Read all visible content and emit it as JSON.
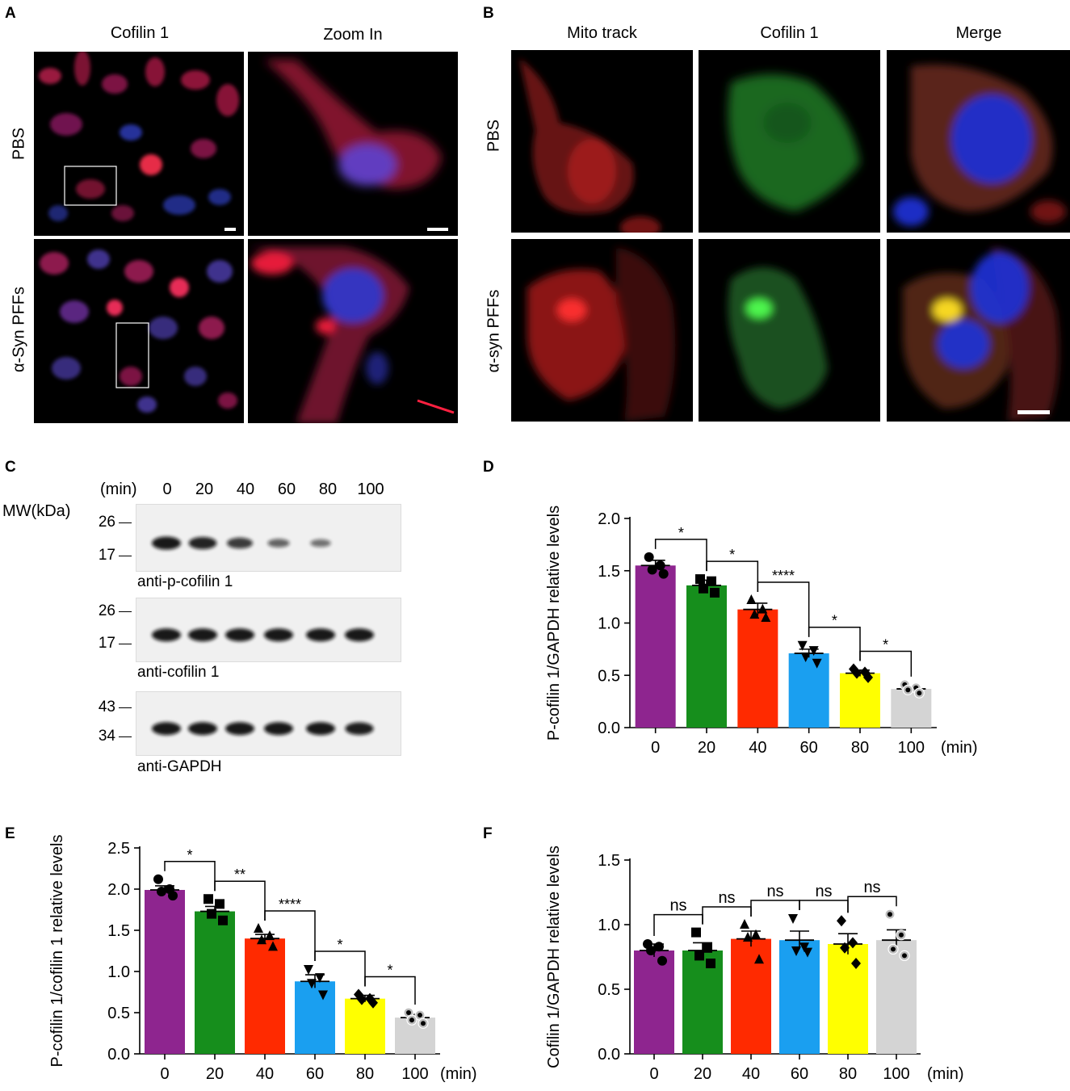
{
  "panels": {
    "A": {
      "letter": "A",
      "col_titles": [
        "Cofilin 1",
        "Zoom In"
      ],
      "row_labels": [
        "PBS",
        "α-Syn PFFs"
      ]
    },
    "B": {
      "letter": "B",
      "col_titles": [
        "Mito track",
        "Cofilin 1",
        "Merge"
      ],
      "row_labels": [
        "PBS",
        "α-syn PFFs"
      ]
    },
    "C": {
      "letter": "C",
      "time_header": "(min)",
      "lanes": [
        "0",
        "20",
        "40",
        "60",
        "80",
        "100"
      ],
      "mw_label": "MW(kDa)",
      "blots": [
        {
          "name": "anti-p-cofilin 1",
          "mw_top": "26",
          "mw_bottom": "17",
          "intensity": [
            1.0,
            0.92,
            0.75,
            0.45,
            0.35,
            0.0
          ]
        },
        {
          "name": "anti-cofilin 1",
          "mw_top": "26",
          "mw_bottom": "17",
          "intensity": [
            1.0,
            1.0,
            1.0,
            1.0,
            1.0,
            1.0
          ]
        },
        {
          "name": "anti-GAPDH",
          "mw_top": "43",
          "mw_bottom": "34",
          "intensity": [
            1.0,
            1.0,
            1.0,
            1.0,
            1.0,
            0.95
          ]
        }
      ]
    },
    "D": {
      "letter": "D"
    },
    "E": {
      "letter": "E"
    },
    "F": {
      "letter": "F"
    }
  },
  "colors": {
    "bars": [
      "#8e258f",
      "#168e1c",
      "#ff2a00",
      "#1a9ff0",
      "#ffff00",
      "#d4d4d4"
    ],
    "red_stain": "#e0203a",
    "green_stain": "#33b23a",
    "blue_stain": "#2a3ad8"
  },
  "chart_data": [
    {
      "id": "D",
      "type": "bar",
      "categories": [
        "0",
        "20",
        "40",
        "60",
        "80",
        "100"
      ],
      "x_unit": "(min)",
      "values": [
        1.55,
        1.36,
        1.13,
        0.71,
        0.52,
        0.37
      ],
      "errors": [
        0.05,
        0.05,
        0.06,
        0.04,
        0.03,
        0.02
      ],
      "points": [
        [
          1.63,
          1.55,
          1.51,
          1.47
        ],
        [
          1.42,
          1.4,
          1.33,
          1.29
        ],
        [
          1.22,
          1.13,
          1.08,
          1.05
        ],
        [
          0.79,
          0.74,
          0.68,
          0.62
        ],
        [
          0.56,
          0.53,
          0.52,
          0.48
        ],
        [
          0.41,
          0.38,
          0.36,
          0.33
        ]
      ],
      "markers": [
        "circle",
        "square",
        "triangle",
        "triangle-down",
        "diamond",
        "hollow-circle"
      ],
      "ylabel": "P-cofilin 1/GAPDH relative levels",
      "ylim": [
        0,
        2.0
      ],
      "yticks": [
        "0.0",
        "0.5",
        "1.0",
        "1.5",
        "2.0"
      ],
      "significance": [
        {
          "from": 0,
          "to": 1,
          "label": "*"
        },
        {
          "from": 1,
          "to": 2,
          "label": "*"
        },
        {
          "from": 2,
          "to": 3,
          "label": "****"
        },
        {
          "from": 3,
          "to": 4,
          "label": "*"
        },
        {
          "from": 4,
          "to": 5,
          "label": "*"
        }
      ]
    },
    {
      "id": "E",
      "type": "bar",
      "categories": [
        "0",
        "20",
        "40",
        "60",
        "80",
        "100"
      ],
      "x_unit": "(min)",
      "values": [
        1.99,
        1.73,
        1.4,
        0.88,
        0.67,
        0.44
      ],
      "errors": [
        0.05,
        0.06,
        0.05,
        0.08,
        0.04,
        0.04
      ],
      "points": [
        [
          2.12,
          2.0,
          1.97,
          1.92
        ],
        [
          1.88,
          1.82,
          1.7,
          1.62
        ],
        [
          1.52,
          1.43,
          1.38,
          1.3
        ],
        [
          1.03,
          0.93,
          0.86,
          0.72
        ],
        [
          0.72,
          0.67,
          0.66,
          0.62
        ],
        [
          0.5,
          0.47,
          0.41,
          0.37
        ]
      ],
      "markers": [
        "circle",
        "square",
        "triangle",
        "triangle-down",
        "diamond",
        "hollow-circle"
      ],
      "ylabel": "P-cofilin 1/cofilin 1 relative levels",
      "ylim": [
        0,
        2.5
      ],
      "yticks": [
        "0.0",
        "0.5",
        "1.0",
        "1.5",
        "2.0",
        "2.5"
      ],
      "significance": [
        {
          "from": 0,
          "to": 1,
          "label": "*"
        },
        {
          "from": 1,
          "to": 2,
          "label": "**"
        },
        {
          "from": 2,
          "to": 3,
          "label": "****"
        },
        {
          "from": 3,
          "to": 4,
          "label": "*"
        },
        {
          "from": 4,
          "to": 5,
          "label": "*"
        }
      ]
    },
    {
      "id": "F",
      "type": "bar",
      "categories": [
        "0",
        "20",
        "40",
        "60",
        "80",
        "100"
      ],
      "x_unit": "(min)",
      "values": [
        0.8,
        0.8,
        0.89,
        0.88,
        0.85,
        0.88
      ],
      "errors": [
        0.05,
        0.06,
        0.06,
        0.07,
        0.08,
        0.08
      ],
      "points": [
        [
          0.85,
          0.83,
          0.8,
          0.72
        ],
        [
          0.94,
          0.82,
          0.76,
          0.7
        ],
        [
          1.0,
          0.92,
          0.9,
          0.73
        ],
        [
          1.05,
          0.83,
          0.8,
          0.79
        ],
        [
          1.03,
          0.86,
          0.82,
          0.7
        ],
        [
          1.08,
          0.92,
          0.81,
          0.76
        ]
      ],
      "markers": [
        "circle",
        "square",
        "triangle",
        "triangle-down",
        "diamond",
        "hollow-circle"
      ],
      "ylabel": "Cofilin 1/GAPDH relative levels",
      "ylim": [
        0,
        1.5
      ],
      "yticks": [
        "0.0",
        "0.5",
        "1.0",
        "1.5"
      ],
      "significance": [
        {
          "from": 0,
          "to": 1,
          "label": "ns"
        },
        {
          "from": 1,
          "to": 2,
          "label": "ns"
        },
        {
          "from": 2,
          "to": 3,
          "label": "ns"
        },
        {
          "from": 3,
          "to": 4,
          "label": "ns"
        },
        {
          "from": 4,
          "to": 5,
          "label": "ns"
        }
      ]
    }
  ]
}
